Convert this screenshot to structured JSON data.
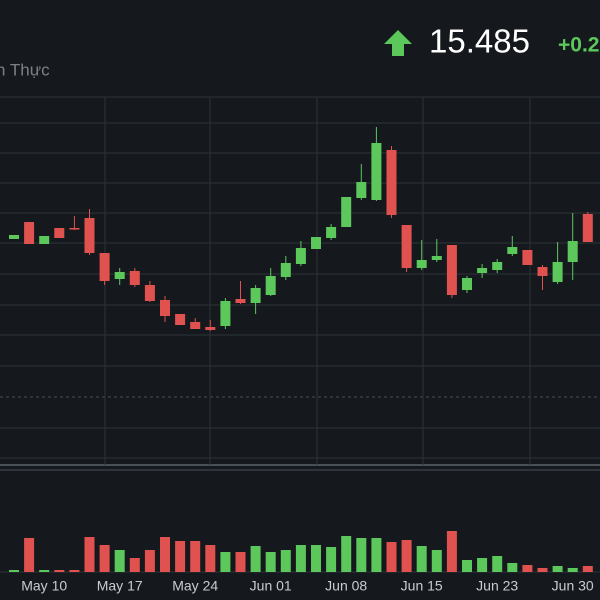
{
  "header": {
    "label": "n Thực",
    "price": "15.485",
    "change": "+0.2"
  },
  "chart_data": {
    "type": "candlestick",
    "categories": [
      "",
      "",
      "May 10",
      "",
      "",
      "",
      "",
      "May 17",
      "",
      "",
      "",
      "",
      "May 24",
      "",
      "",
      "",
      "",
      "Jun 01",
      "",
      "",
      "",
      "",
      "Jun 08",
      "",
      "",
      "",
      "",
      "Jun 15",
      "",
      "",
      "",
      "",
      "Jun 23",
      "",
      "",
      "",
      "",
      "Jun 30",
      ""
    ],
    "open": [
      15.51,
      15.68,
      15.46,
      15.62,
      15.62,
      15.72,
      15.37,
      15.11,
      15.19,
      15.05,
      14.9,
      14.76,
      14.68,
      14.63,
      14.64,
      14.91,
      14.87,
      14.95,
      15.13,
      15.26,
      15.41,
      15.52,
      15.63,
      15.92,
      15.9,
      16.4,
      15.65,
      15.22,
      15.3,
      15.45,
      15.0,
      15.17,
      15.2,
      15.36,
      15.4,
      15.23,
      15.08,
      15.28,
      15.76
    ],
    "high": [
      15.55,
      15.68,
      15.54,
      15.62,
      15.74,
      15.81,
      15.37,
      15.22,
      15.22,
      15.09,
      14.94,
      14.76,
      14.72,
      14.7,
      14.92,
      15.09,
      15.05,
      15.22,
      15.34,
      15.49,
      15.53,
      15.66,
      15.93,
      16.26,
      16.63,
      16.44,
      15.65,
      15.5,
      15.51,
      15.45,
      15.14,
      15.26,
      15.31,
      15.54,
      15.4,
      15.25,
      15.48,
      15.77,
      15.78
    ],
    "low": [
      15.51,
      15.46,
      15.46,
      15.52,
      15.6,
      15.35,
      15.05,
      15.05,
      15.03,
      14.88,
      14.68,
      14.65,
      14.61,
      14.59,
      14.61,
      14.86,
      14.76,
      14.94,
      15.1,
      15.24,
      15.41,
      15.5,
      15.63,
      15.9,
      15.89,
      15.72,
      15.18,
      15.2,
      15.28,
      14.92,
      14.97,
      15.12,
      15.17,
      15.34,
      15.25,
      15.0,
      15.06,
      15.1,
      15.48
    ],
    "close": [
      15.55,
      15.46,
      15.54,
      15.52,
      15.61,
      15.37,
      15.09,
      15.18,
      15.05,
      14.89,
      14.74,
      14.65,
      14.61,
      14.6,
      14.89,
      14.87,
      15.02,
      15.14,
      15.27,
      15.42,
      15.53,
      15.63,
      15.93,
      16.08,
      16.47,
      15.75,
      15.22,
      15.3,
      15.34,
      14.95,
      15.12,
      15.22,
      15.28,
      15.43,
      15.25,
      15.14,
      15.28,
      15.49,
      15.48
    ],
    "volume": [
      2,
      34,
      2,
      2,
      2,
      35,
      27,
      22,
      14,
      22,
      35,
      31,
      31,
      27,
      20,
      20,
      26,
      20,
      22,
      27,
      27,
      25,
      36,
      34,
      34,
      30,
      32,
      26,
      22,
      41,
      12,
      14,
      16,
      9,
      7,
      4,
      6,
      4,
      6
    ],
    "ylim": [
      13.3,
      16.93
    ],
    "volume_ylim": [
      0,
      45
    ],
    "up_color": "#5cc85c",
    "down_color": "#e0524f"
  }
}
